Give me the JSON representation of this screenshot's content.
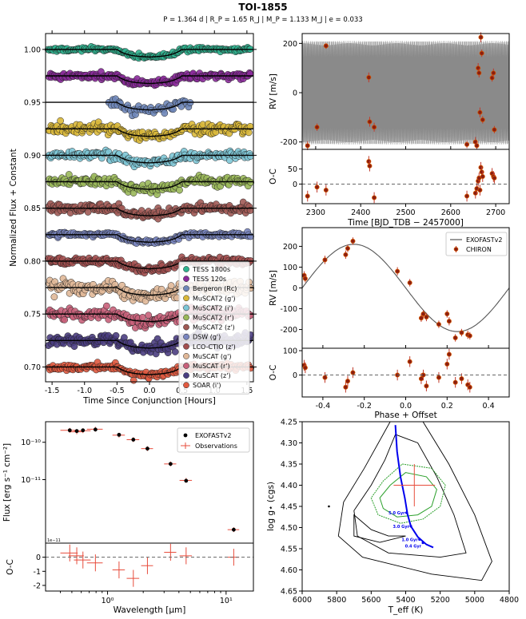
{
  "header": {
    "title": "TOI-1855",
    "subtitle": "P = 1.364 d | R_P = 1.65 R_J | M_P = 1.133 M_J | e = 0.033"
  },
  "chart_data": [
    {
      "id": "transits",
      "type": "scatter",
      "title": "",
      "xlabel": "Time Since Conjunction [Hours]",
      "ylabel": "Normalized Flux + Constant",
      "xlim": [
        -1.6,
        1.6
      ],
      "ylim": [
        0.686,
        1.015
      ],
      "xticks": [
        -1.5,
        -1.0,
        -0.5,
        0.0,
        0.5,
        1.0,
        1.5
      ],
      "yticks": [
        0.7,
        0.75,
        0.8,
        0.85,
        0.9,
        0.95,
        1.0
      ],
      "transit_depth": 0.0072,
      "transit_duration_hours": 1.0,
      "series": [
        {
          "name": "TESS 1800s",
          "offset": 1.0,
          "color": "#2fb38f",
          "xmin": -1.55,
          "xmax": 1.55,
          "scatter": 0.0009
        },
        {
          "name": "TESS 120s",
          "offset": 0.975,
          "color": "#8a2a9a",
          "xmin": -1.55,
          "xmax": 1.55,
          "scatter": 0.0015
        },
        {
          "name": "Bergeron (Rc)",
          "offset": 0.95,
          "color": "#6e86b8",
          "xmin": -0.62,
          "xmax": 0.62,
          "scatter": 0.0022
        },
        {
          "name": "MuSCAT2 (g')",
          "offset": 0.925,
          "color": "#d9b83a",
          "xmin": -1.55,
          "xmax": 1.55,
          "scatter": 0.0024
        },
        {
          "name": "MuSCAT2 (i')",
          "offset": 0.9,
          "color": "#7ec6d6",
          "xmin": -1.55,
          "xmax": 1.55,
          "scatter": 0.002
        },
        {
          "name": "MuSCAT2 (r')",
          "offset": 0.875,
          "color": "#9ab85a",
          "xmin": -1.55,
          "xmax": 1.55,
          "scatter": 0.0021
        },
        {
          "name": "MuSCAT2 (z')",
          "offset": 0.85,
          "color": "#a05a55",
          "xmin": -1.55,
          "xmax": 1.55,
          "scatter": 0.002
        },
        {
          "name": "DSW (g')",
          "offset": 0.825,
          "color": "#7a86c0",
          "xmin": -1.55,
          "xmax": 1.55,
          "scatter": 0.001
        },
        {
          "name": "LCO-CTIO (z')",
          "offset": 0.8,
          "color": "#a35050",
          "xmin": -1.55,
          "xmax": 1.55,
          "scatter": 0.0018
        },
        {
          "name": "MuSCAT (g')",
          "offset": 0.775,
          "color": "#e0b898",
          "xmin": -1.55,
          "xmax": 1.55,
          "scatter": 0.003
        },
        {
          "name": "MuSCAT (r')",
          "offset": 0.75,
          "color": "#c8607a",
          "xmin": -1.55,
          "xmax": 1.55,
          "scatter": 0.0032
        },
        {
          "name": "MuSCAT (z')",
          "offset": 0.725,
          "color": "#4a3d80",
          "xmin": -1.55,
          "xmax": 1.55,
          "scatter": 0.003
        },
        {
          "name": "SOAR (i')",
          "offset": 0.7,
          "color": "#e05a40",
          "xmin": -1.55,
          "xmax": 1.55,
          "scatter": 0.0015
        }
      ]
    },
    {
      "id": "rv_time",
      "type": "scatter",
      "xlabel": "Time [BJD_TDB − 2457000]",
      "ylabel": "RV [m/s]",
      "ylabel_resid": "O-C",
      "xlim": [
        2270,
        2730
      ],
      "ylim": [
        -230,
        240
      ],
      "resid_ylim": [
        -65,
        115
      ],
      "xticks": [
        2300,
        2400,
        2500,
        2600,
        2700
      ],
      "yticks": [
        -200,
        0,
        200
      ],
      "resid_yticks": [
        0,
        50
      ],
      "model_period_days": 1.364,
      "model_amplitude": 210,
      "points": [
        {
          "t": 2282,
          "rv": -215,
          "err": 18,
          "oc": -40
        },
        {
          "t": 2303,
          "rv": -140,
          "err": 15,
          "oc": -10
        },
        {
          "t": 2323,
          "rv": 190,
          "err": 12,
          "oc": -20
        },
        {
          "t": 2418,
          "rv": 62,
          "err": 20,
          "oc": 75
        },
        {
          "t": 2420,
          "rv": -118,
          "err": 20,
          "oc": 60
        },
        {
          "t": 2430,
          "rv": -140,
          "err": 18,
          "oc": -45
        },
        {
          "t": 2636,
          "rv": -210,
          "err": 15,
          "oc": -40
        },
        {
          "t": 2655,
          "rv": -200,
          "err": 20,
          "oc": -30
        },
        {
          "t": 2658,
          "rv": -215,
          "err": 16,
          "oc": -15
        },
        {
          "t": 2661,
          "rv": 100,
          "err": 20,
          "oc": 10
        },
        {
          "t": 2663,
          "rv": 80,
          "err": 18,
          "oc": 20
        },
        {
          "t": 2665,
          "rv": -80,
          "err": 20,
          "oc": -20
        },
        {
          "t": 2667,
          "rv": 225,
          "err": 20,
          "oc": 55
        },
        {
          "t": 2669,
          "rv": 160,
          "err": 15,
          "oc": 40
        },
        {
          "t": 2671,
          "rv": -110,
          "err": 15,
          "oc": 25
        },
        {
          "t": 2692,
          "rv": 60,
          "err": 15,
          "oc": 35
        },
        {
          "t": 2695,
          "rv": 80,
          "err": 18,
          "oc": 25
        },
        {
          "t": 2697,
          "rv": -150,
          "err": 15,
          "oc": 20
        }
      ]
    },
    {
      "id": "rv_phase",
      "type": "scatter",
      "xlabel": "Phase + Offset",
      "ylabel": "RV [m/s]",
      "ylabel_resid": "O-C",
      "xlim": [
        -0.5,
        0.5
      ],
      "ylim": [
        -290,
        290
      ],
      "resid_ylim": [
        -90,
        110
      ],
      "xticks": [
        -0.4,
        -0.2,
        0.0,
        0.2,
        0.4
      ],
      "yticks": [
        -200,
        -100,
        0,
        100,
        200
      ],
      "resid_yticks": [
        0,
        100
      ],
      "legend": [
        "EXOFASTv2",
        "CHIRON"
      ],
      "model": {
        "amplitude": 210,
        "gamma": 0,
        "peak_phase": -0.25
      },
      "points": [
        {
          "ph": -0.49,
          "rv": 60,
          "err": 20,
          "oc": 40
        },
        {
          "ph": -0.485,
          "rv": 45,
          "err": 18,
          "oc": 30
        },
        {
          "ph": -0.39,
          "rv": 135,
          "err": 20,
          "oc": -10
        },
        {
          "ph": -0.29,
          "rv": 160,
          "err": 20,
          "oc": -50
        },
        {
          "ph": -0.28,
          "rv": 190,
          "err": 18,
          "oc": -25
        },
        {
          "ph": -0.255,
          "rv": 225,
          "err": 18,
          "oc": 10
        },
        {
          "ph": -0.04,
          "rv": 80,
          "err": 20,
          "oc": 0
        },
        {
          "ph": 0.02,
          "rv": 25,
          "err": 18,
          "oc": 55
        },
        {
          "ph": 0.075,
          "rv": -145,
          "err": 18,
          "oc": -15
        },
        {
          "ph": 0.085,
          "rv": -125,
          "err": 18,
          "oc": 0
        },
        {
          "ph": 0.1,
          "rv": -140,
          "err": 20,
          "oc": -45
        },
        {
          "ph": 0.16,
          "rv": -175,
          "err": 18,
          "oc": -10
        },
        {
          "ph": 0.2,
          "rv": -125,
          "err": 18,
          "oc": 45
        },
        {
          "ph": 0.21,
          "rv": -160,
          "err": 20,
          "oc": 85
        },
        {
          "ph": 0.24,
          "rv": -240,
          "err": 18,
          "oc": -30
        },
        {
          "ph": 0.27,
          "rv": -215,
          "err": 18,
          "oc": -15
        },
        {
          "ph": 0.3,
          "rv": -225,
          "err": 20,
          "oc": -40
        },
        {
          "ph": 0.31,
          "rv": -230,
          "err": 18,
          "oc": -50
        }
      ]
    },
    {
      "id": "sed",
      "type": "scatter",
      "xlabel": "Wavelength [μm]",
      "ylabel": "Flux [erg s⁻¹ cm⁻²]",
      "ylabel_resid": "O-C",
      "xscale": "log",
      "yscale": "log",
      "xlim": [
        0.3,
        17
      ],
      "ylim_log10": [
        -12.7,
        -9.45
      ],
      "resid_ylim": [
        -2.4,
        1.0
      ],
      "resid_yticks": [
        0,
        -1,
        -2
      ],
      "yticks_log10": [
        -10,
        -11
      ],
      "ytick_labels": [
        "10⁻¹⁰",
        "10⁻¹¹"
      ],
      "xtick_major": [
        1,
        10
      ],
      "xtick_labels": [
        "10⁰",
        "10¹"
      ],
      "offset_text": "1e−11",
      "legend": [
        "EXOFASTv2",
        "Observations"
      ],
      "model_points": [
        {
          "wl": 0.48,
          "logf": -9.68
        },
        {
          "wl": 0.55,
          "logf": -9.7
        },
        {
          "wl": 0.62,
          "logf": -9.68
        },
        {
          "wl": 0.79,
          "logf": -9.66
        },
        {
          "wl": 1.25,
          "logf": -9.8
        },
        {
          "wl": 1.65,
          "logf": -9.93
        },
        {
          "wl": 2.17,
          "logf": -10.17
        },
        {
          "wl": 3.4,
          "logf": -10.58
        },
        {
          "wl": 4.6,
          "logf": -11.03
        },
        {
          "wl": 11.6,
          "logf": -12.34
        }
      ],
      "obs_points": [
        {
          "wl": 0.48,
          "logf": -9.68,
          "wlerr": 0.08,
          "oc": 0.3
        },
        {
          "wl": 0.55,
          "logf": -9.72,
          "wlerr": 0.08,
          "oc": 0.1
        },
        {
          "wl": 0.62,
          "logf": -9.69,
          "wlerr": 0.1,
          "oc": -0.2
        },
        {
          "wl": 0.79,
          "logf": -9.65,
          "wlerr": 0.12,
          "oc": -0.4
        },
        {
          "wl": 1.25,
          "logf": -9.81,
          "wlerr": 0.15,
          "oc": -0.9
        },
        {
          "wl": 1.65,
          "logf": -9.93,
          "wlerr": 0.2,
          "oc": -1.5
        },
        {
          "wl": 2.17,
          "logf": -10.17,
          "wlerr": 0.25,
          "oc": -0.6
        },
        {
          "wl": 3.4,
          "logf": -10.58,
          "wlerr": 0.4,
          "oc": 0.35
        },
        {
          "wl": 4.6,
          "logf": -11.02,
          "wlerr": 0.55,
          "oc": 0.1
        },
        {
          "wl": 11.6,
          "logf": -12.34,
          "wlerr": 1.3,
          "oc": 0.0
        }
      ]
    },
    {
      "id": "hr",
      "type": "line",
      "xlabel": "T_eff (K)",
      "ylabel": "log g⋆ (cgs)",
      "xlim": [
        6000,
        4800
      ],
      "ylim": [
        4.25,
        4.65
      ],
      "xticks": [
        6000,
        5800,
        5600,
        5400,
        5200,
        5000,
        4800
      ],
      "yticks": [
        4.25,
        4.3,
        4.35,
        4.4,
        4.45,
        4.5,
        4.55,
        4.6,
        4.65
      ],
      "star": {
        "teff": 5350,
        "logg": 4.4,
        "teff_err": 120,
        "logg_err": 0.05
      },
      "track": [
        {
          "teff": 5460,
          "logg": 4.258
        },
        {
          "teff": 5450,
          "logg": 4.32
        },
        {
          "teff": 5430,
          "logg": 4.38
        },
        {
          "teff": 5405,
          "logg": 4.43
        },
        {
          "teff": 5390,
          "logg": 4.468
        },
        {
          "teff": 5370,
          "logg": 4.497
        },
        {
          "teff": 5330,
          "logg": 4.522
        },
        {
          "teff": 5280,
          "logg": 4.54
        },
        {
          "teff": 5240,
          "logg": 4.547
        }
      ],
      "age_labels": [
        {
          "label": "5.0 Gyr",
          "teff": 5395,
          "logg": 4.465
        },
        {
          "label": "3.0 Gyr",
          "teff": 5370,
          "logg": 4.497
        },
        {
          "label": "1.0 Gyr",
          "teff": 5320,
          "logg": 4.528
        },
        {
          "label": "0.4 Gyr",
          "teff": 5300,
          "logg": 4.536
        }
      ],
      "outlier": {
        "teff": 5845,
        "logg": 4.45
      }
    }
  ]
}
